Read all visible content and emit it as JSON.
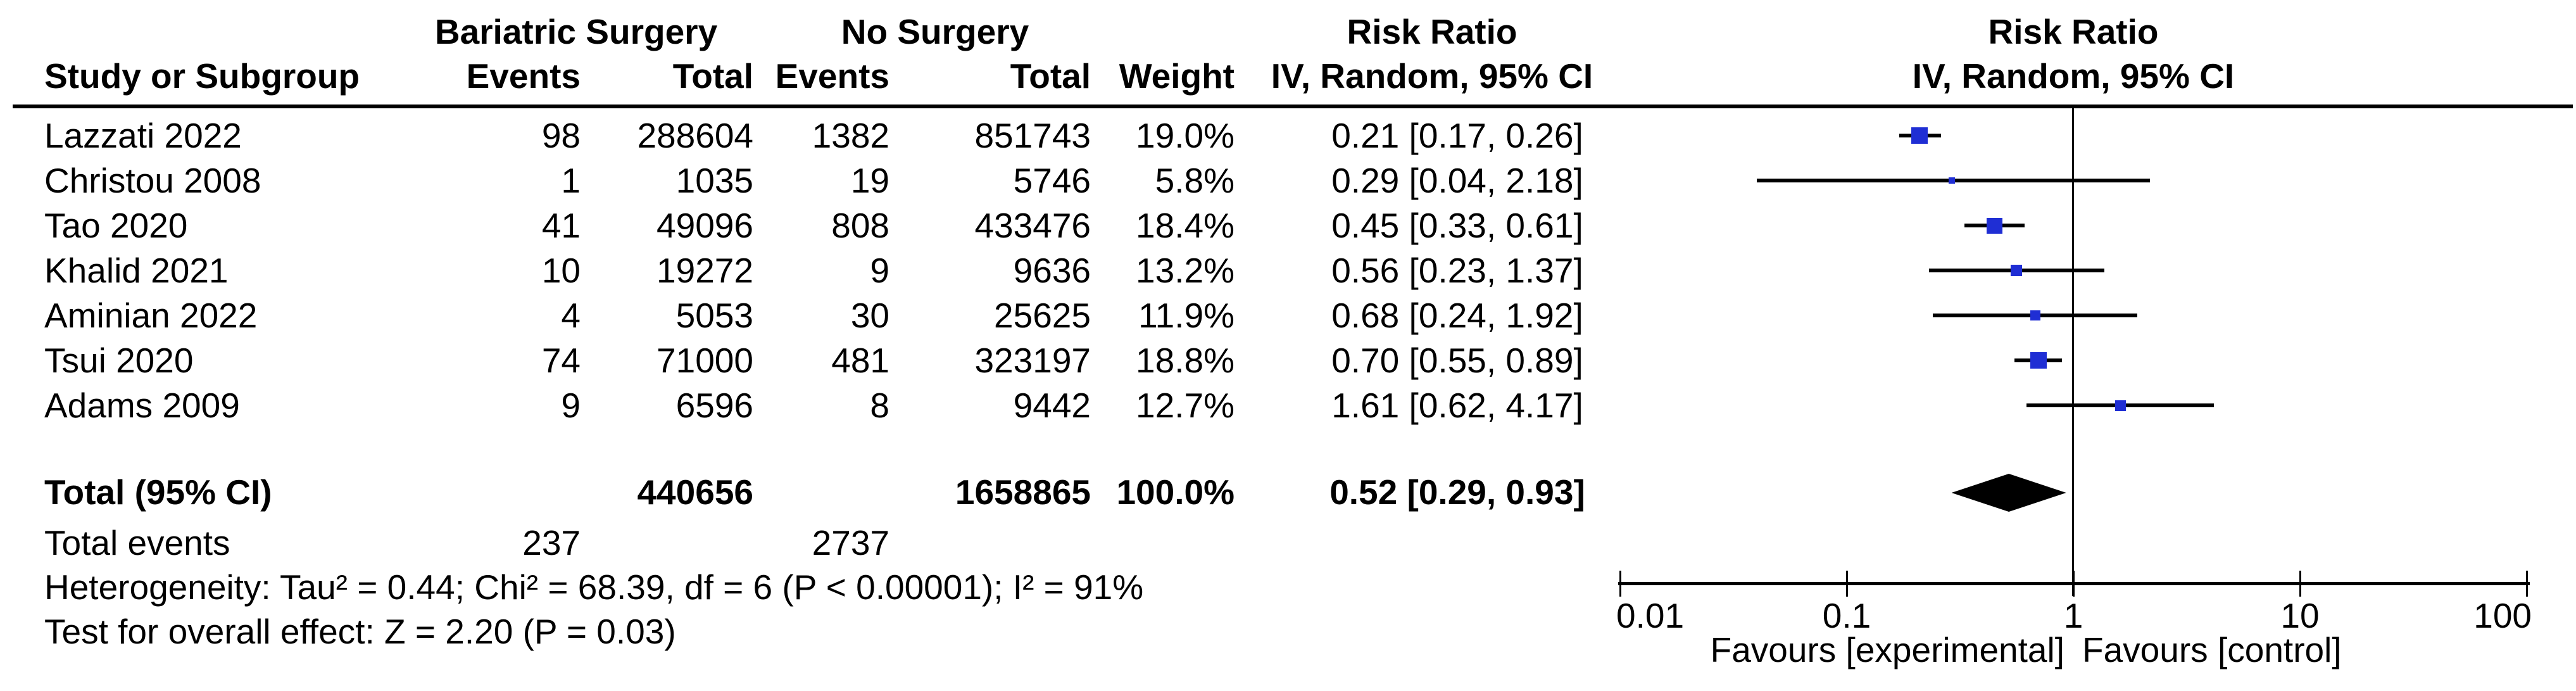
{
  "accent_colors": {
    "square_blue": "#1f2ed4",
    "line_black": "#000000",
    "background": "#ffffff"
  },
  "header": {
    "group1": "Bariatric Surgery",
    "group2": "No Surgery",
    "study_col": "Study or Subgroup",
    "events_col1": "Events",
    "total_col1": "Total",
    "events_col2": "Events",
    "total_col2": "Total",
    "weight_col": "Weight",
    "effect_col_title": "Risk Ratio",
    "effect_col_sub": "IV, Random, 95% CI",
    "plot_col_title": "Risk Ratio",
    "plot_col_sub": "IV, Random, 95% CI"
  },
  "chart_data": {
    "type": "forest",
    "effect_measure": "Risk Ratio",
    "model": "IV, Random, 95% CI",
    "x_scale": "log10",
    "x_range": [
      0.01,
      100
    ],
    "x_ticks": [
      0.01,
      0.1,
      1,
      10,
      100
    ],
    "x_tick_labels": [
      "0.01",
      "0.1",
      "1",
      "10",
      "100"
    ],
    "favours_left": "Favours [experimental]",
    "favours_right": "Favours [control]",
    "studies": [
      {
        "study": "Lazzati 2022",
        "events1": 98,
        "total1": 288604,
        "events2": 1382,
        "total2": 851743,
        "weight": "19.0%",
        "weight_pct": 19.0,
        "rr": 0.21,
        "ci_low": 0.17,
        "ci_high": 0.26,
        "ci_text": "0.21 [0.17, 0.26]"
      },
      {
        "study": "Christou 2008",
        "events1": 1,
        "total1": 1035,
        "events2": 19,
        "total2": 5746,
        "weight": "5.8%",
        "weight_pct": 5.8,
        "rr": 0.29,
        "ci_low": 0.04,
        "ci_high": 2.18,
        "ci_text": "0.29 [0.04, 2.18]"
      },
      {
        "study": "Tao 2020",
        "events1": 41,
        "total1": 49096,
        "events2": 808,
        "total2": 433476,
        "weight": "18.4%",
        "weight_pct": 18.4,
        "rr": 0.45,
        "ci_low": 0.33,
        "ci_high": 0.61,
        "ci_text": "0.45 [0.33, 0.61]"
      },
      {
        "study": "Khalid 2021",
        "events1": 10,
        "total1": 19272,
        "events2": 9,
        "total2": 9636,
        "weight": "13.2%",
        "weight_pct": 13.2,
        "rr": 0.56,
        "ci_low": 0.23,
        "ci_high": 1.37,
        "ci_text": "0.56 [0.23, 1.37]"
      },
      {
        "study": "Aminian 2022",
        "events1": 4,
        "total1": 5053,
        "events2": 30,
        "total2": 25625,
        "weight": "11.9%",
        "weight_pct": 11.9,
        "rr": 0.68,
        "ci_low": 0.24,
        "ci_high": 1.92,
        "ci_text": "0.68 [0.24, 1.92]"
      },
      {
        "study": "Tsui 2020",
        "events1": 74,
        "total1": 71000,
        "events2": 481,
        "total2": 323197,
        "weight": "18.8%",
        "weight_pct": 18.8,
        "rr": 0.7,
        "ci_low": 0.55,
        "ci_high": 0.89,
        "ci_text": "0.70 [0.55, 0.89]"
      },
      {
        "study": "Adams 2009",
        "events1": 9,
        "total1": 6596,
        "events2": 8,
        "total2": 9442,
        "weight": "12.7%",
        "weight_pct": 12.7,
        "rr": 1.61,
        "ci_low": 0.62,
        "ci_high": 4.17,
        "ci_text": "1.61 [0.62, 4.17]"
      }
    ],
    "total": {
      "label": "Total (95% CI)",
      "total1": 440656,
      "total2": 1658865,
      "weight": "100.0%",
      "rr": 0.52,
      "ci_low": 0.29,
      "ci_high": 0.93,
      "ci_text": "0.52 [0.29, 0.93]"
    },
    "total_events": {
      "label": "Total events",
      "events1": 237,
      "events2": 2737
    },
    "heterogeneity": "Heterogeneity: Tau² = 0.44; Chi² = 68.39, df = 6 (P < 0.00001); I² = 91%",
    "overall_effect": "Test for overall effect: Z = 2.20 (P = 0.03)"
  }
}
